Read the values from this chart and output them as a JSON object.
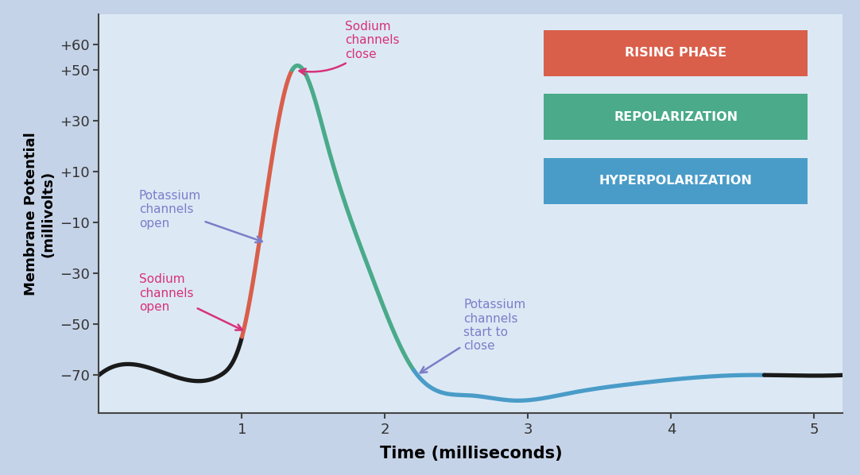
{
  "background_outer": "#c5d3e8",
  "background_inner": "#dce9f5",
  "title_x": "Time (milliseconds)",
  "title_y": "Membrane Potential\n(millivolts)",
  "xlim": [
    0,
    5.2
  ],
  "ylim": [
    -85,
    72
  ],
  "xticks": [
    1,
    2,
    3,
    4,
    5
  ],
  "yticks": [
    -70,
    -50,
    -30,
    -10,
    10,
    30,
    50,
    60
  ],
  "ytick_labels": [
    "−70",
    "−50",
    "−30",
    "−10",
    "+10",
    "+30",
    "+50",
    "+60"
  ],
  "color_black": "#1a1a1a",
  "color_red": "#d95f4b",
  "color_teal": "#4aaa8a",
  "color_blue": "#4a9cc8",
  "color_magenta": "#d8317a",
  "color_purple": "#7b7ec8",
  "legend_items": [
    {
      "label": "RISING PHASE",
      "color": "#d95f4b"
    },
    {
      "label": "REPOLARIZATION",
      "color": "#4aaa8a"
    },
    {
      "label": "HYPERPOLARIZATION",
      "color": "#4a9cc8"
    }
  ],
  "curve_knots_t": [
    0.0,
    0.5,
    0.85,
    1.0,
    1.35,
    1.6,
    1.9,
    2.2,
    2.6,
    2.9,
    3.3,
    3.8,
    4.5,
    4.7,
    5.2
  ],
  "curve_knots_v": [
    -70,
    -70,
    -70,
    -55,
    50,
    20,
    -30,
    -68,
    -78,
    -80,
    -77,
    -73,
    -70,
    -70,
    -70
  ],
  "t_black1_end": 1.0,
  "t_red_end": 1.35,
  "t_teal_end": 2.2,
  "t_blue_end": 4.65
}
